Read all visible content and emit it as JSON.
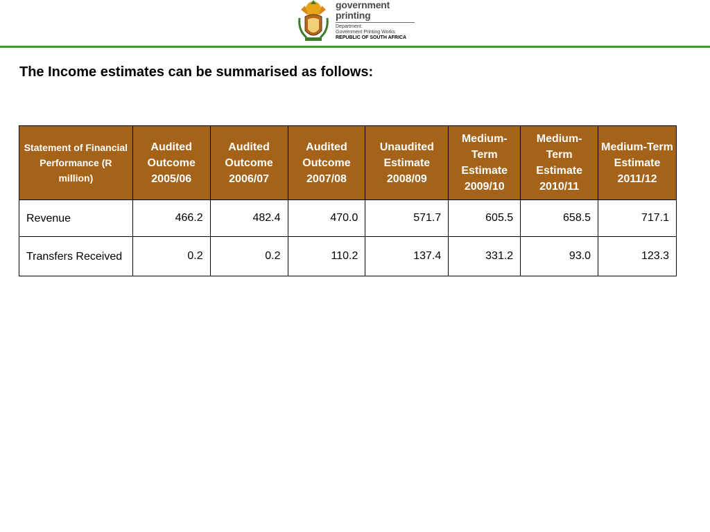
{
  "header": {
    "logo": {
      "line1": "government",
      "line2": "printing",
      "dept": "Department:",
      "org": "Government Printing Works",
      "country": "REPUBLIC OF SOUTH AFRICA"
    },
    "rule_color": "#3a9a2a"
  },
  "page_title": "The Income estimates can be summarised as follows:",
  "table": {
    "header_color": "#a5631a",
    "columns": [
      "Statement of Financial Performance (R million)",
      "Audited Outcome 2005/06",
      "Audited Outcome 2006/07",
      "Audited Outcome 2007/08",
      "Unaudited Estimate 2008/09",
      "Medium-Term Estimate 2009/10",
      "Medium-Term Estimate 2010/11",
      "Medium-Term Estimate 2011/12"
    ],
    "rows": [
      {
        "label": "Revenue",
        "values": [
          "466.2",
          "482.4",
          "470.0",
          "571.7",
          "605.5",
          "658.5",
          "717.1"
        ]
      },
      {
        "label": "Transfers Received",
        "values": [
          "0.2",
          "0.2",
          "110.2",
          "137.4",
          "331.2",
          "93.0",
          "123.3"
        ]
      }
    ]
  }
}
